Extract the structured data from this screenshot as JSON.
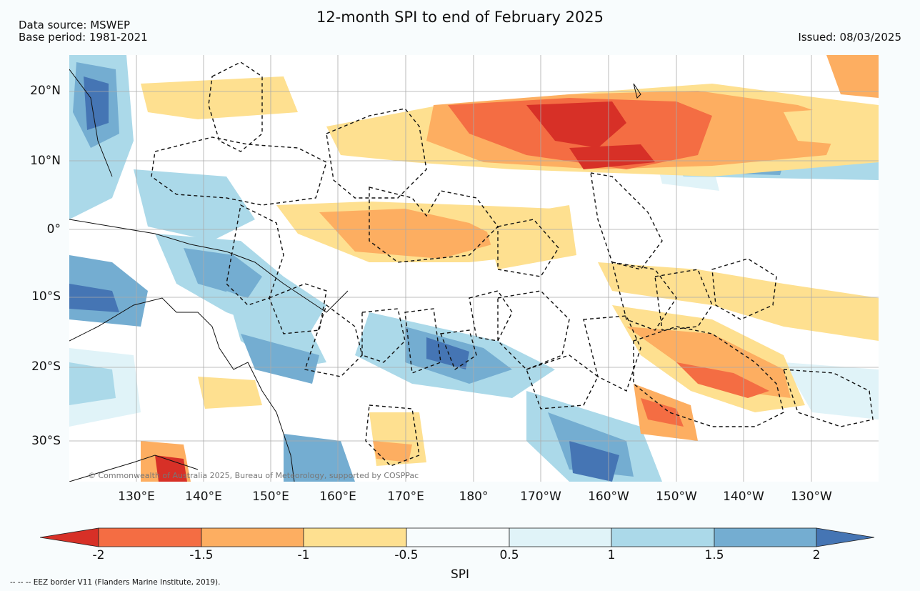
{
  "title": "12-month SPI to end of February 2025",
  "meta": {
    "source": "Data source: MSWEP",
    "base_period": "Base period: 1981-2021",
    "issued": "Issued: 08/03/2025"
  },
  "map": {
    "lat_labels": [
      "20°N",
      "10°N",
      "0°",
      "10°S",
      "20°S",
      "30°S"
    ],
    "lon_labels": [
      "130°E",
      "140°E",
      "150°E",
      "160°E",
      "170°E",
      "180°",
      "170°W",
      "160°W",
      "150°W",
      "140°W",
      "130°W"
    ],
    "credit": "© Commonwealth of Australia 2025, Bureau of Meteorology, supported by COSPPac"
  },
  "colorbar": {
    "label": "SPI",
    "ticks": [
      "-2",
      "-1.5",
      "-1",
      "-0.5",
      "0.5",
      "1",
      "1.5",
      "2"
    ],
    "colors": {
      "extreme_dry": "#d73027",
      "very_dry": "#f46d43",
      "moderately_dry": "#fdae61",
      "slightly_dry": "#fee090",
      "normal": "#f7fcfd",
      "slightly_wet": "#e0f3f8",
      "moderately_wet": "#abd9e9",
      "very_wet": "#74add1",
      "extreme_wet": "#4575b4"
    }
  },
  "footnote": "-- -- -- EEZ border V11 (Flanders Marine Institute, 2019)."
}
